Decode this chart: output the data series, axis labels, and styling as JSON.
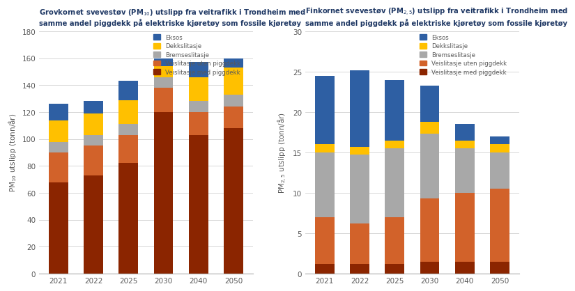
{
  "pm10": {
    "title": "Grovkornet svevestøv (PM$_{10}$) utslipp fra veitrafikk i Trondheim med\nsamme andel piggdekk på elektriske kjøretøy som fossile kjøretøy",
    "ylabel": "PM$_{10}$ utslipp (tonn/år)",
    "ylim": [
      0,
      180
    ],
    "yticks": [
      0,
      20,
      40,
      60,
      80,
      100,
      120,
      140,
      160,
      180
    ],
    "years": [
      "2021",
      "2022",
      "2025",
      "2030",
      "2040",
      "2050"
    ],
    "Veislitasje med piggdekk": [
      68,
      73,
      82,
      120,
      103,
      108
    ],
    "Veislitasje uten piggdekk": [
      22,
      22,
      21,
      18,
      17,
      16
    ],
    "Bremseslitasje": [
      8,
      8,
      8,
      8,
      8,
      9
    ],
    "Dekkslitasje": [
      16,
      16,
      18,
      8,
      18,
      20
    ],
    "Eksos": [
      12,
      9,
      14,
      6,
      11,
      7
    ]
  },
  "pm25": {
    "title": "Finkornet svevestøv (PM$_{2,5}$) utslipp fra veitrafikk i Trondheim med\nsamme andel piggdekk på elektriske kjøretøy som fossile kjøretøy",
    "ylabel": "PM$_{2,5}$ utslipp (tonn/år)",
    "ylim": [
      0,
      30
    ],
    "yticks": [
      0,
      5,
      10,
      15,
      20,
      25,
      30
    ],
    "years": [
      "2021",
      "2022",
      "2025",
      "2030",
      "2040",
      "2050"
    ],
    "Veislitasje med piggdekk": [
      1.2,
      1.2,
      1.2,
      1.5,
      1.5,
      1.5
    ],
    "Veislitasje uten piggdekk": [
      5.8,
      5.0,
      5.8,
      7.8,
      8.5,
      9.0
    ],
    "Bremseslitasje": [
      8.0,
      8.5,
      8.5,
      8.0,
      5.5,
      4.5
    ],
    "Dekkslitasje": [
      1.0,
      1.0,
      1.0,
      1.5,
      1.0,
      1.0
    ],
    "Eksos": [
      8.5,
      9.5,
      7.5,
      4.5,
      2.0,
      1.0
    ]
  },
  "colors": {
    "Veislitasje med piggdekk": "#8B2500",
    "Veislitasje uten piggdekk": "#D2622A",
    "Bremseslitasje": "#A8A8A8",
    "Dekkslitasje": "#FFC000",
    "Eksos": "#2E5FA3"
  },
  "legend_order": [
    "Eksos",
    "Dekkslitasje",
    "Bremseslitasje",
    "Veislitasje uten piggdekk",
    "Veislitasje med piggdekk"
  ],
  "background_color": "#FFFFFF",
  "title_color": "#1F3864",
  "axis_color": "#595959"
}
